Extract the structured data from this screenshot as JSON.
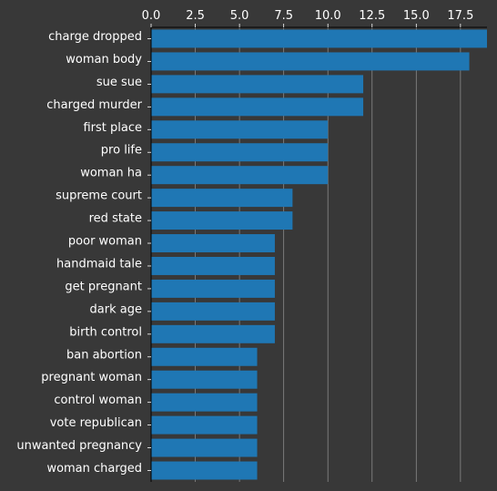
{
  "chart_data": {
    "type": "bar",
    "orientation": "horizontal",
    "categories": [
      "charge dropped",
      "woman body",
      "sue sue",
      "charged murder",
      "first place",
      "pro life",
      "woman ha",
      "supreme court",
      "red state",
      "poor woman",
      "handmaid tale",
      "get pregnant",
      "dark age",
      "birth control",
      "ban abortion",
      "pregnant woman",
      "control woman",
      "vote republican",
      "unwanted pregnancy",
      "woman charged"
    ],
    "values": [
      19,
      18,
      12,
      12,
      10,
      10,
      10,
      8,
      8,
      7,
      7,
      7,
      7,
      7,
      6,
      6,
      6,
      6,
      6,
      6
    ],
    "xlim": [
      0,
      19
    ],
    "xticks": [
      "0.0",
      "2.5",
      "5.0",
      "7.5",
      "10.0",
      "12.5",
      "15.0",
      "17.5"
    ],
    "xtick_values": [
      0,
      2.5,
      5,
      7.5,
      10,
      12.5,
      15,
      17.5
    ],
    "x_axis_position": "top",
    "grid": "vertical",
    "title": "",
    "xlabel": "",
    "ylabel": ""
  },
  "colors": {
    "background": "#383838",
    "bar": "#1f77b4",
    "text": "#ffffff",
    "axis": "#000000",
    "grid": "#8a8a8a"
  }
}
